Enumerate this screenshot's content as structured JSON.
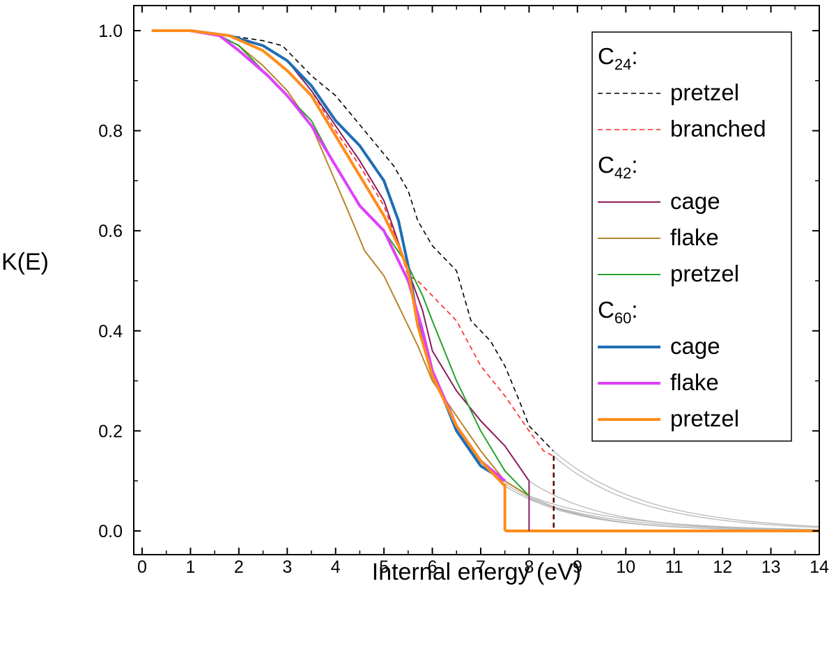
{
  "chart_data": {
    "type": "line",
    "title": "",
    "xlabel": "Internal energy (eV)",
    "ylabel": "K(E)",
    "xlim": [
      0,
      14
    ],
    "ylim": [
      0,
      1.0
    ],
    "x_ticks": [
      "0",
      "1",
      "2",
      "3",
      "4",
      "5",
      "6",
      "7",
      "8",
      "9",
      "10",
      "11",
      "12",
      "13",
      "14"
    ],
    "y_ticks": [
      "0.0",
      "0.2",
      "0.4",
      "0.6",
      "0.8",
      "1.0"
    ],
    "legend_position": "top-right",
    "legend_groups": [
      {
        "base": "C",
        "sub": "24",
        "suffix": ":"
      },
      {
        "base": "C",
        "sub": "42",
        "suffix": ":"
      },
      {
        "base": "C",
        "sub": "60",
        "suffix": ":"
      }
    ],
    "series": [
      {
        "name": "pretzel",
        "group": 0,
        "color": "#000000",
        "dash": true,
        "width": 1.6,
        "x": [
          0.2,
          1.0,
          1.8,
          2.5,
          2.9,
          3.1,
          3.5,
          4.0,
          4.6,
          5.2,
          5.5,
          5.7,
          6.0,
          6.5,
          6.8,
          7.2,
          7.5,
          7.8,
          8.0,
          8.3,
          8.5
        ],
        "y": [
          1.0,
          1.0,
          0.99,
          0.98,
          0.97,
          0.95,
          0.91,
          0.87,
          0.8,
          0.73,
          0.68,
          0.62,
          0.57,
          0.52,
          0.42,
          0.38,
          0.33,
          0.26,
          0.21,
          0.18,
          0.16
        ]
      },
      {
        "name": "branched",
        "group": 0,
        "color": "#ff2020",
        "dash": true,
        "width": 1.6,
        "x": [
          0.2,
          1.0,
          1.8,
          2.5,
          3.0,
          3.5,
          4.0,
          4.5,
          5.0,
          5.3,
          5.5,
          5.7,
          6.0,
          6.5,
          7.0,
          7.5,
          8.0,
          8.3,
          8.5
        ],
        "y": [
          1.0,
          1.0,
          0.99,
          0.97,
          0.94,
          0.88,
          0.8,
          0.73,
          0.65,
          0.57,
          0.51,
          0.5,
          0.47,
          0.42,
          0.33,
          0.27,
          0.2,
          0.16,
          0.15
        ]
      },
      {
        "name": "cage",
        "group": 1,
        "color": "#8b1a5e",
        "dash": false,
        "width": 2,
        "x": [
          0.2,
          1.0,
          1.8,
          2.5,
          3.0,
          3.5,
          4.0,
          4.5,
          5.0,
          5.5,
          5.8,
          6.0,
          6.5,
          7.0,
          7.5,
          8.0
        ],
        "y": [
          1.0,
          1.0,
          0.99,
          0.97,
          0.94,
          0.88,
          0.81,
          0.74,
          0.66,
          0.52,
          0.44,
          0.36,
          0.28,
          0.22,
          0.17,
          0.1
        ]
      },
      {
        "name": "flake",
        "group": 1,
        "color": "#b5862c",
        "dash": false,
        "width": 2,
        "x": [
          0.2,
          1.0,
          1.6,
          2.0,
          2.5,
          3.0,
          3.5,
          3.9,
          4.3,
          4.6,
          5.0,
          5.3,
          5.5,
          5.7,
          6.0,
          6.5,
          7.0,
          7.5,
          8.0
        ],
        "y": [
          1.0,
          1.0,
          0.99,
          0.97,
          0.93,
          0.88,
          0.81,
          0.72,
          0.63,
          0.56,
          0.51,
          0.45,
          0.41,
          0.37,
          0.3,
          0.23,
          0.16,
          0.1,
          0.07
        ]
      },
      {
        "name": "pretzel",
        "group": 1,
        "color": "#27a12b",
        "dash": false,
        "width": 2,
        "x": [
          0.2,
          1.0,
          1.6,
          2.0,
          2.6,
          3.0,
          3.5,
          4.0,
          4.5,
          5.0,
          5.5,
          5.8,
          6.0,
          6.5,
          7.0,
          7.5,
          8.0
        ],
        "y": [
          1.0,
          1.0,
          0.99,
          0.97,
          0.91,
          0.87,
          0.82,
          0.73,
          0.65,
          0.6,
          0.53,
          0.47,
          0.42,
          0.3,
          0.2,
          0.12,
          0.07
        ]
      },
      {
        "name": "cage",
        "group": 2,
        "color": "#1f6eb4",
        "dash": false,
        "width": 4,
        "x": [
          0.2,
          1.0,
          1.8,
          2.5,
          3.0,
          3.5,
          4.0,
          4.5,
          5.0,
          5.3,
          5.5,
          5.7,
          6.0,
          6.5,
          7.0,
          7.5
        ],
        "y": [
          1.0,
          1.0,
          0.99,
          0.97,
          0.94,
          0.89,
          0.82,
          0.77,
          0.7,
          0.62,
          0.53,
          0.42,
          0.32,
          0.2,
          0.13,
          0.1
        ]
      },
      {
        "name": "flake",
        "group": 2,
        "color": "#e040fb",
        "dash": false,
        "width": 4,
        "x": [
          0.3,
          1.0,
          1.6,
          2.0,
          2.6,
          3.0,
          3.5,
          4.0,
          4.5,
          5.0,
          5.5,
          5.8,
          6.0,
          6.5,
          7.0,
          7.5
        ],
        "y": [
          1.0,
          1.0,
          0.99,
          0.96,
          0.91,
          0.87,
          0.81,
          0.73,
          0.65,
          0.6,
          0.5,
          0.4,
          0.32,
          0.21,
          0.14,
          0.1
        ]
      },
      {
        "name": "pretzel",
        "group": 2,
        "color": "#ff8c1a",
        "dash": false,
        "width": 4,
        "x": [
          0.2,
          1.0,
          1.8,
          2.5,
          3.0,
          3.5,
          4.0,
          4.5,
          5.0,
          5.3,
          5.5,
          5.7,
          6.0,
          6.5,
          7.0,
          7.5
        ],
        "y": [
          1.0,
          1.0,
          0.99,
          0.96,
          0.92,
          0.87,
          0.79,
          0.71,
          0.63,
          0.57,
          0.52,
          0.41,
          0.31,
          0.21,
          0.14,
          0.09
        ]
      }
    ],
    "drop_lines": [
      {
        "x": 8.0,
        "from": 0.1,
        "color": "#8b1a5e",
        "dash": false,
        "width": 2
      },
      {
        "x": 8.5,
        "from": 0.15,
        "color": "#ff2020",
        "dash": true,
        "width": 1.6
      },
      {
        "x": 8.5,
        "from": 0.15,
        "color": "#000000",
        "dash": true,
        "width": 1.6,
        "offset": 1
      },
      {
        "x": 7.5,
        "from": 0.095,
        "color": "#ff8c1a",
        "dash": false,
        "width": 4
      }
    ],
    "baseline": {
      "from": 7.5,
      "to": 14,
      "y": 0,
      "color": "#ff8c1a",
      "width": 4
    },
    "extrapolations": [
      {
        "start": [
          8.5,
          0.16
        ],
        "end": [
          14,
          0.009
        ]
      },
      {
        "start": [
          8.5,
          0.15
        ],
        "end": [
          14,
          0.007
        ]
      },
      {
        "start": [
          8.0,
          0.07
        ],
        "end": [
          14,
          0.003
        ]
      },
      {
        "start": [
          8.0,
          0.1
        ],
        "end": [
          14,
          0.002
        ]
      },
      {
        "start": [
          8.0,
          0.065
        ],
        "end": [
          14,
          0.002
        ]
      },
      {
        "start": [
          7.5,
          0.1
        ],
        "end": [
          14,
          0.001
        ]
      },
      {
        "start": [
          7.5,
          0.09
        ],
        "end": [
          14,
          0.001
        ]
      },
      {
        "start": [
          7.5,
          0.095
        ],
        "end": [
          14,
          0.001
        ]
      }
    ],
    "extrapolation_color": "#b8b8b8"
  }
}
